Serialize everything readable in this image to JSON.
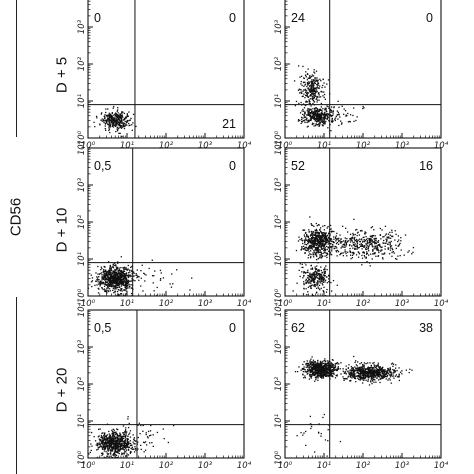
{
  "figure": {
    "marker_label": "CD56",
    "axis_tick_labels": [
      "10⁰",
      "10¹",
      "10²",
      "10³",
      "10⁴"
    ]
  },
  "rows": [
    {
      "label": "D + 5"
    },
    {
      "label": "D + 10"
    },
    {
      "label": "D + 20"
    }
  ],
  "chart_data": [
    {
      "type": "scatter",
      "row_label": "D + 5",
      "column": 1,
      "scale": "log",
      "xlim": [
        1,
        10000
      ],
      "ylim": [
        1,
        10000
      ],
      "grid": false,
      "quadrant_gates": {
        "x": 16,
        "y": 8
      },
      "quadrant_percentages": {
        "upper_left": "0",
        "upper_right": "0",
        "lower_right": "21"
      },
      "populations": [
        {
          "center": [
            5,
            3
          ],
          "spread": [
            0.18,
            0.12
          ],
          "points": 320
        }
      ]
    },
    {
      "type": "scatter",
      "row_label": "D + 5",
      "column": 2,
      "scale": "log",
      "xlim": [
        1,
        10000
      ],
      "ylim": [
        1,
        10000
      ],
      "grid": false,
      "quadrant_gates": {
        "x": 14,
        "y": 8
      },
      "quadrant_percentages": {
        "upper_left": "24",
        "upper_right": "0"
      },
      "populations": [
        {
          "center": [
            5,
            20
          ],
          "spread": [
            0.15,
            0.2
          ],
          "points": 260
        },
        {
          "center": [
            7,
            4
          ],
          "spread": [
            0.22,
            0.13
          ],
          "points": 380
        },
        {
          "center": [
            30,
            4
          ],
          "spread": [
            0.3,
            0.15
          ],
          "points": 40
        }
      ]
    },
    {
      "type": "scatter",
      "row_label": "D + 10",
      "column": 1,
      "scale": "log",
      "xlim": [
        1,
        10000
      ],
      "ylim": [
        1,
        10000
      ],
      "grid": false,
      "quadrant_gates": {
        "x": 14,
        "y": 8
      },
      "quadrant_percentages": {
        "upper_left": "0,5",
        "upper_right": "0"
      },
      "populations": [
        {
          "center": [
            5,
            3
          ],
          "spread": [
            0.22,
            0.17
          ],
          "points": 750
        },
        {
          "center": [
            40,
            3
          ],
          "spread": [
            0.45,
            0.25
          ],
          "points": 35
        }
      ]
    },
    {
      "type": "scatter",
      "row_label": "D + 10",
      "column": 2,
      "scale": "log",
      "xlim": [
        1,
        10000
      ],
      "ylim": [
        1,
        10000
      ],
      "grid": false,
      "quadrant_gates": {
        "x": 14,
        "y": 8
      },
      "quadrant_percentages": {
        "upper_left": "52",
        "upper_right": "16"
      },
      "populations": [
        {
          "center": [
            7,
            30
          ],
          "spread": [
            0.2,
            0.2
          ],
          "points": 520
        },
        {
          "center": [
            120,
            25
          ],
          "spread": [
            0.5,
            0.2
          ],
          "points": 420
        },
        {
          "center": [
            6,
            3
          ],
          "spread": [
            0.18,
            0.18
          ],
          "points": 260
        }
      ]
    },
    {
      "type": "scatter",
      "row_label": "D + 20",
      "column": 1,
      "scale": "log",
      "xlim": [
        1,
        10000
      ],
      "ylim": [
        1,
        10000
      ],
      "grid": false,
      "quadrant_gates": {
        "x": 18,
        "y": 8
      },
      "quadrant_percentages": {
        "upper_left": "0,5",
        "upper_right": "0"
      },
      "populations": [
        {
          "center": [
            5,
            2.5
          ],
          "spread": [
            0.24,
            0.16
          ],
          "points": 650
        },
        {
          "center": [
            25,
            5
          ],
          "spread": [
            0.3,
            0.2
          ],
          "points": 40
        }
      ]
    },
    {
      "type": "scatter",
      "row_label": "D + 20",
      "column": 2,
      "scale": "log",
      "xlim": [
        1,
        10000
      ],
      "ylim": [
        1,
        10000
      ],
      "grid": false,
      "quadrant_gates": {
        "x": 14,
        "y": 8
      },
      "quadrant_percentages": {
        "upper_left": "62",
        "upper_right": "38"
      },
      "populations": [
        {
          "center": [
            8,
            250
          ],
          "spread": [
            0.2,
            0.11
          ],
          "points": 650
        },
        {
          "center": [
            150,
            200
          ],
          "spread": [
            0.35,
            0.11
          ],
          "points": 650
        },
        {
          "center": [
            8,
            6
          ],
          "spread": [
            0.3,
            0.3
          ],
          "points": 25
        }
      ]
    }
  ]
}
